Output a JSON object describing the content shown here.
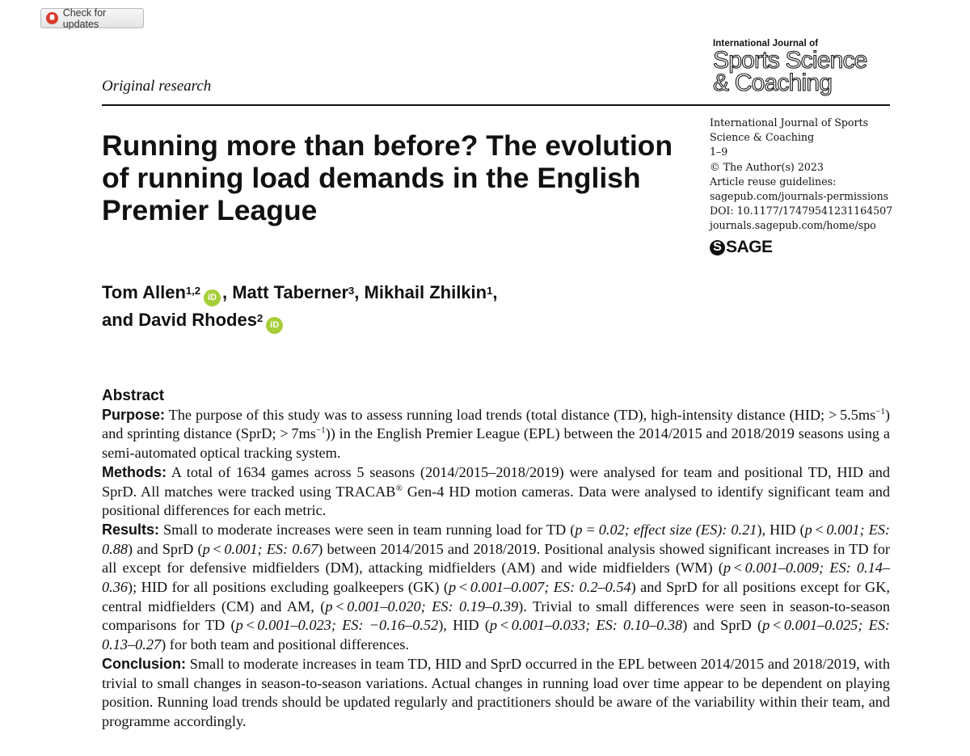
{
  "updates_button": {
    "label": "Check for updates",
    "icon": "crossmark-icon"
  },
  "article_type": "Original research",
  "journal_logo": {
    "line1": "International Journal of",
    "line2": "Sports Science",
    "line3": "& Coaching"
  },
  "title": "Running more than before? The evolution of running load demands in the English Premier League",
  "meta": {
    "journal": "International Journal of Sports Science & Coaching",
    "pages": "1–9",
    "copyright": "© The Author(s) 2023",
    "reuse": "Article reuse guidelines:",
    "permissions": "sagepub.com/journals-permissions",
    "doi": "DOI: 10.1177/17479541231164507",
    "homepage": "journals.sagepub.com/home/spo"
  },
  "publisher": "SAGE",
  "authors": [
    {
      "name": "Tom Allen",
      "aff": "1,2",
      "orcid": true
    },
    {
      "name": "Matt Taberner",
      "aff": "3",
      "orcid": false
    },
    {
      "name": "Mikhail Zhilkin",
      "aff": "1",
      "orcid": false
    },
    {
      "name": "David Rhodes",
      "aff": "2",
      "orcid": true
    }
  ],
  "abstract": {
    "heading": "Abstract",
    "purpose_label": "Purpose:",
    "purpose_html": "The purpose of this study was to assess running load trends (total distance (TD), high-intensity distance (HID; &gt;&#8201;5.5ms<sup>−1</sup>) and sprinting distance (SprD; &gt;&#8201;7ms<sup>−1</sup>)) in the English Premier League (EPL) between the 2014/2015 and 2018/2019 seasons using a semi-automated optical tracking system.",
    "methods_label": "Methods:",
    "methods_html": "A total of 1634 games across 5 seasons (2014/2015–2018/2019) were analysed for team and positional TD, HID and SprD. All matches were tracked using TRACAB<sup>®</sup> Gen-4 HD motion cameras. Data were analysed to identify significant team and positional differences for each metric.",
    "results_label": "Results:",
    "results_html": "Small to moderate increases were seen in team running load for TD (<i>p</i> = <i>0.02; effect size (ES): 0.21</i>), HID (<i>p</i>&#8201;&lt;&#8201;<i>0.001; ES: 0.88</i>) and SprD (<i>p</i>&#8201;&lt;&#8201;<i>0.001; ES: 0.67</i>) between 2014/2015 and 2018/2019. Positional analysis showed significant increases in TD for all except for defensive midfielders (DM), attacking midfielders (AM) and wide midfielders (WM) (<i>p</i>&#8201;&lt;&#8201;<i>0.001–0.009; ES: 0.14–0.36</i>); HID for all positions excluding goalkeepers (GK) (<i>p</i>&#8201;&lt;&#8201;<i>0.001–0.007; ES: 0.2–0.54</i>) and SprD for all positions except for GK, central midfielders (CM) and AM, (<i>p</i>&#8201;&lt;&#8201;<i>0.001–0.020; ES: 0.19–0.39</i>). Trivial to small differences were seen in season-to-season comparisons for TD (<i>p</i>&#8201;&lt;&#8201;<i>0.001–0.023; ES: −0.16–0.52</i>), HID (<i>p</i>&#8201;&lt;&#8201;<i>0.001–0.033; ES: 0.10–0.38</i>) and SprD (<i>p</i>&#8201;&lt;&#8201;<i>0.001–0.025; ES: 0.13–0.27</i>) for both team and positional differences.",
    "conclusion_label": "Conclusion:",
    "conclusion_html": "Small to moderate increases in team TD, HID and SprD occurred in the EPL between 2014/2015 and 2018/2019, with trivial to small changes in season-to-season variations. Actual changes in running load over time appear to be dependent on playing position. Running load trends should be updated regularly and practitioners should be aware of the variability within their team, and programme accordingly."
  },
  "colors": {
    "orcid": "#a6ce39",
    "text": "#111111"
  }
}
